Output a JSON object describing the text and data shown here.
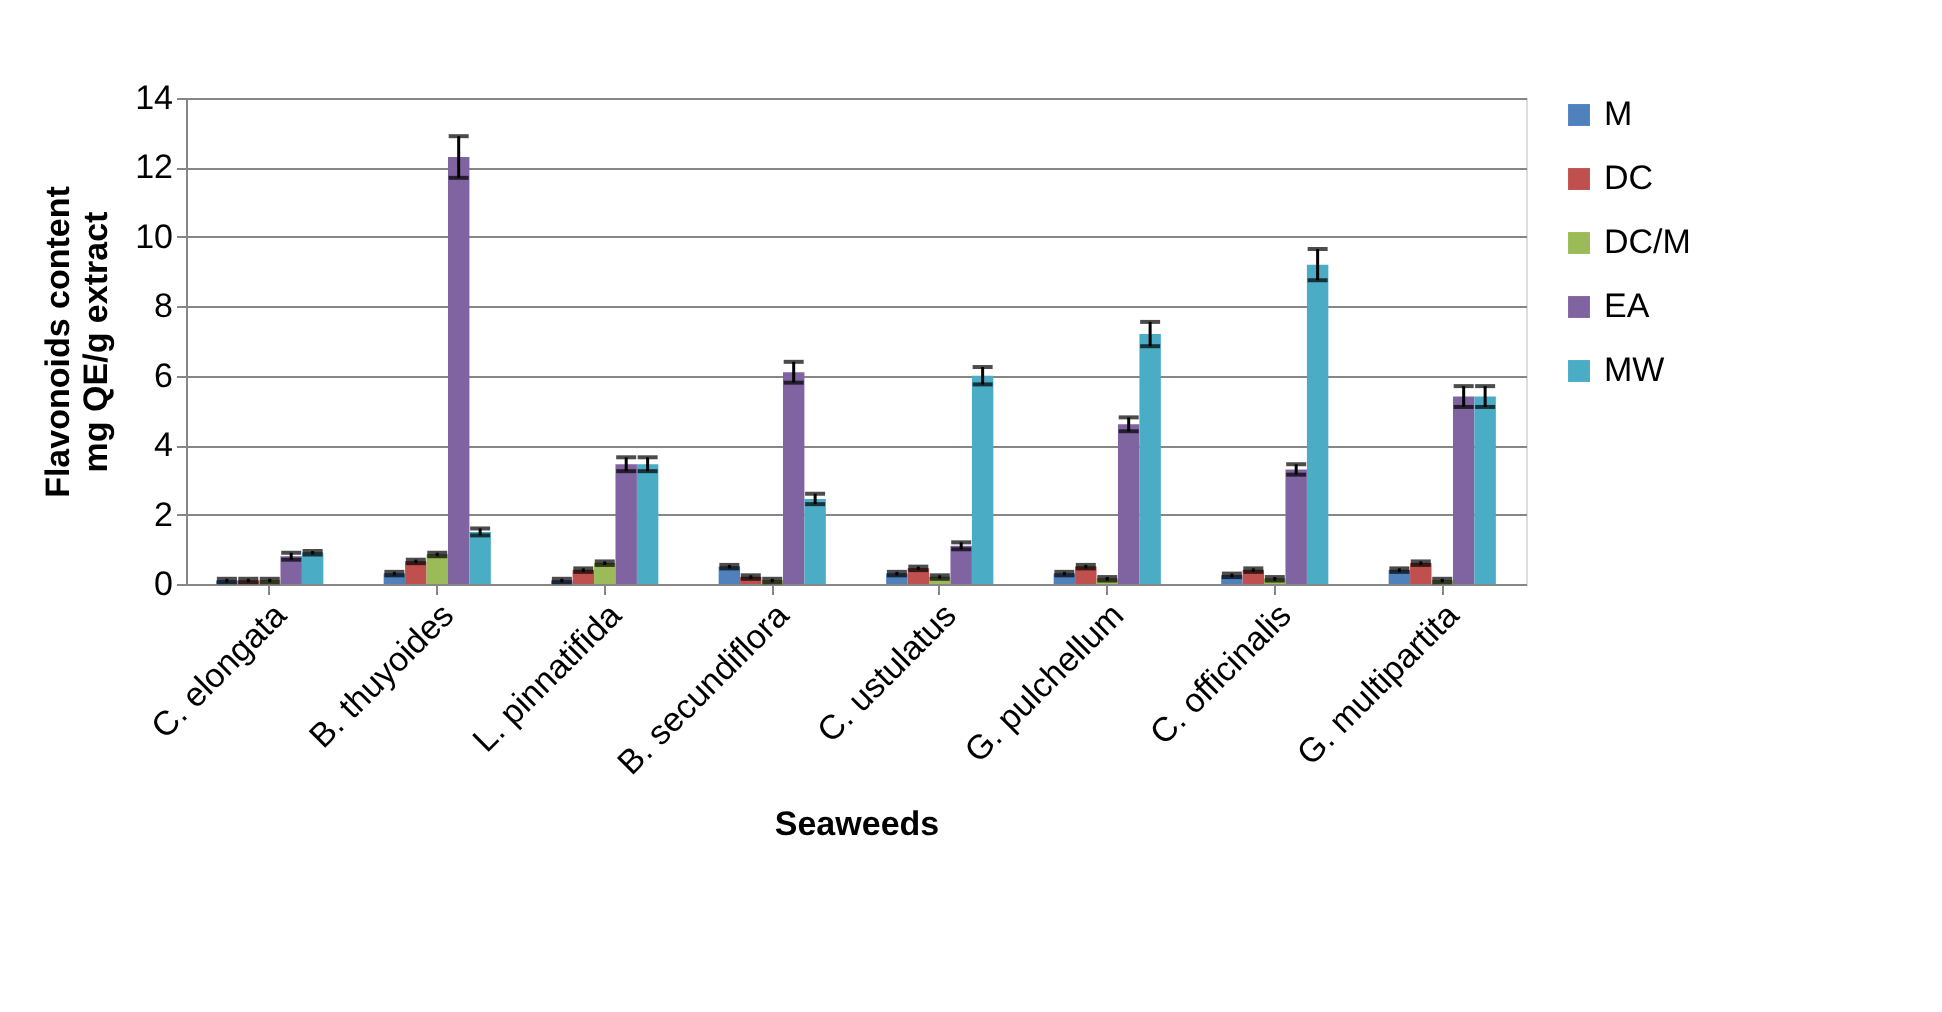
{
  "chart_data": {
    "type": "bar",
    "xlabel": "Seaweeds",
    "ylabel": "Flavonoids content\nmg QE/g extract",
    "categories": [
      "C. elongata",
      "B. thuyoides",
      "L. pinnatifida",
      "B. secundiflora",
      "C. ustulatus",
      "G. pulchellum",
      "C. officinalis",
      "G. multipartita"
    ],
    "series": [
      {
        "name": "M",
        "color": "#4f81bd",
        "values": [
          0.1,
          0.3,
          0.1,
          0.5,
          0.3,
          0.3,
          0.25,
          0.4
        ],
        "errors": [
          0.05,
          0.05,
          0.05,
          0.05,
          0.05,
          0.05,
          0.05,
          0.05
        ]
      },
      {
        "name": "DC",
        "color": "#c0504d",
        "values": [
          0.1,
          0.65,
          0.4,
          0.2,
          0.45,
          0.5,
          0.4,
          0.6
        ],
        "errors": [
          0.05,
          0.05,
          0.05,
          0.05,
          0.05,
          0.05,
          0.05,
          0.05
        ]
      },
      {
        "name": "DC/M",
        "color": "#9bbb59",
        "values": [
          0.1,
          0.85,
          0.6,
          0.1,
          0.2,
          0.15,
          0.15,
          0.1
        ],
        "errors": [
          0.05,
          0.05,
          0.05,
          0.05,
          0.05,
          0.05,
          0.05,
          0.05
        ]
      },
      {
        "name": "EA",
        "color": "#8064a2",
        "values": [
          0.8,
          12.3,
          3.45,
          6.1,
          1.1,
          4.6,
          3.3,
          5.4
        ],
        "errors": [
          0.1,
          0.6,
          0.2,
          0.3,
          0.1,
          0.2,
          0.15,
          0.3
        ]
      },
      {
        "name": "MW",
        "color": "#4bacc6",
        "values": [
          0.9,
          1.5,
          3.45,
          2.45,
          6.0,
          7.2,
          9.2,
          5.4
        ],
        "errors": [
          0.05,
          0.1,
          0.2,
          0.15,
          0.25,
          0.35,
          0.45,
          0.3
        ]
      }
    ],
    "ylim": [
      0,
      14
    ],
    "yticks": [
      0,
      2,
      4,
      6,
      8,
      10,
      12,
      14
    ],
    "grid": "y",
    "legend": "right"
  }
}
